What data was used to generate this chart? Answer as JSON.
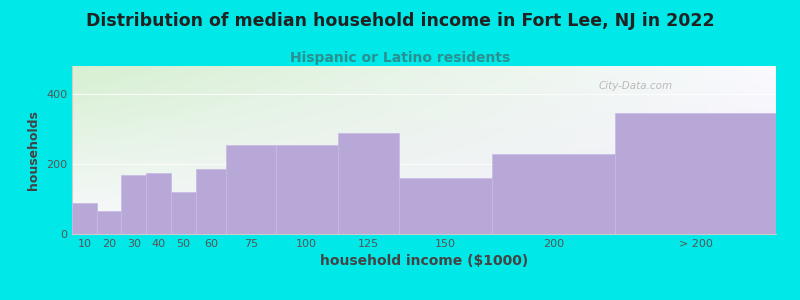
{
  "title": "Distribution of median household income in Fort Lee, NJ in 2022",
  "subtitle": "Hispanic or Latino residents",
  "xlabel": "household income ($1000)",
  "ylabel": "households",
  "categories": [
    "10",
    "20",
    "30",
    "40",
    "50",
    "60",
    "75",
    "100",
    "125",
    "150",
    "200",
    "> 200"
  ],
  "values": [
    90,
    65,
    170,
    175,
    120,
    185,
    255,
    255,
    290,
    160,
    230,
    345
  ],
  "bar_edges": [
    5,
    15,
    25,
    35,
    45,
    55,
    67.5,
    87.5,
    112.5,
    137.5,
    175,
    225,
    290
  ],
  "bar_color": "#b8a8d8",
  "bar_edgecolor": "#c8b8e8",
  "background_outer": "#00e8e8",
  "background_plot_topleft": "#d8f0d0",
  "background_plot_right": "#f0eef8",
  "title_color": "#222222",
  "subtitle_color": "#2a9090",
  "axis_label_color": "#444444",
  "tick_label_color": "#555555",
  "ylim": [
    0,
    480
  ],
  "yticks": [
    0,
    200,
    400
  ],
  "watermark": "City-Data.com",
  "title_fontsize": 12.5,
  "subtitle_fontsize": 10,
  "xlabel_fontsize": 10,
  "ylabel_fontsize": 9
}
